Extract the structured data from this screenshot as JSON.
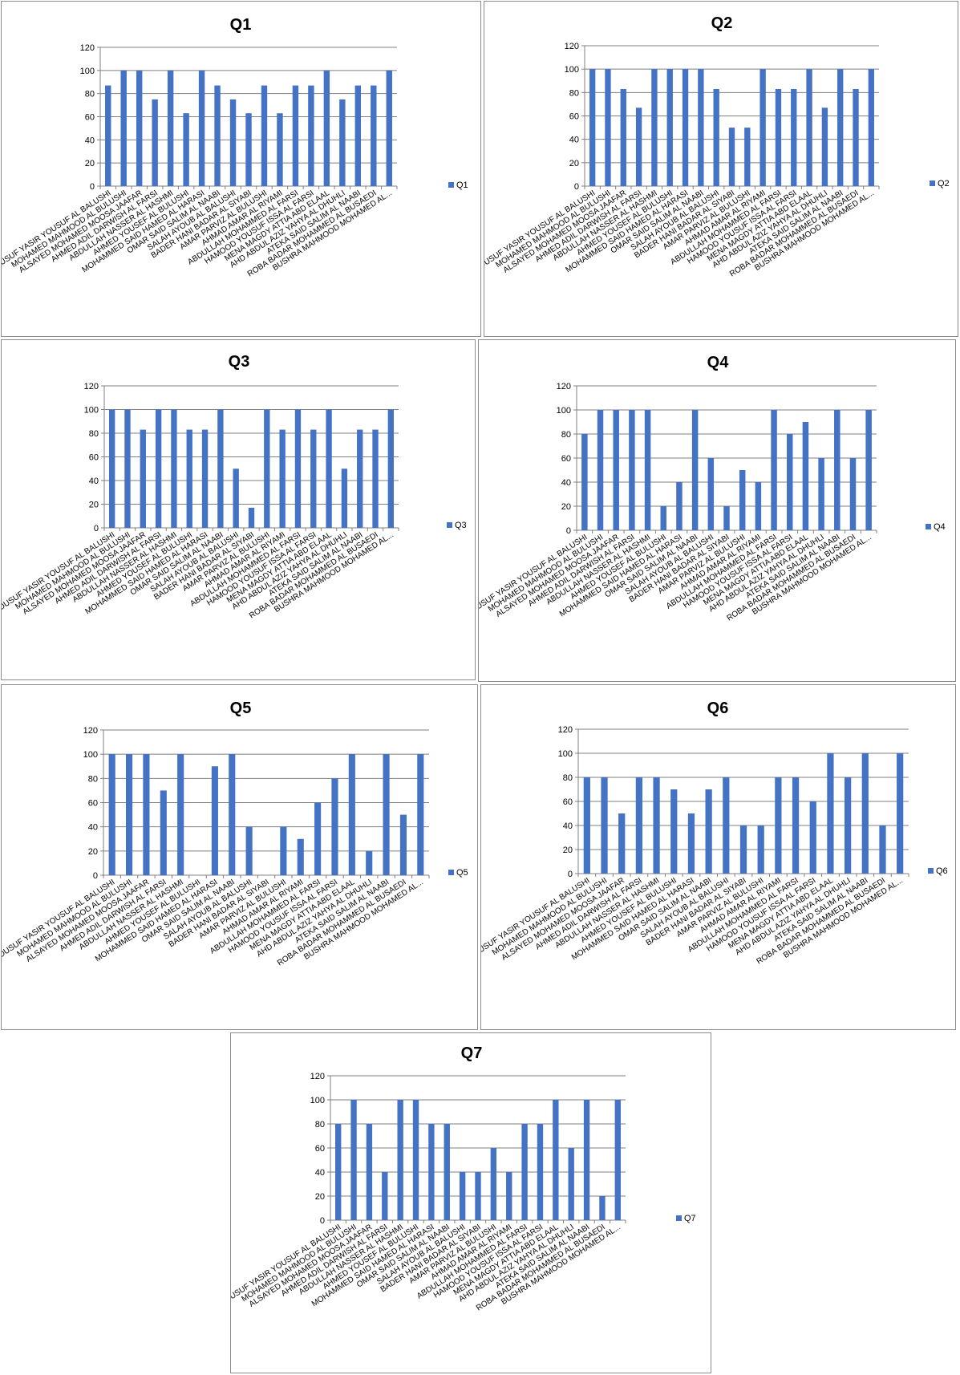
{
  "style": {
    "bar_color": "#4472C4",
    "grid_color": "#7f7f7f",
    "panel_border": "#8c8c8c"
  },
  "chart_data": [
    {
      "type": "bar",
      "title": "Q1",
      "categories": [
        "YOUSUF YASIR YOUSUF AL BALUSHI",
        "MOHAMED MAHMOOD AL BULUSHI",
        "ALSAYED MOHAMED MOOSA JAAFAR",
        "AHMED ADIL DARWISH AL FARSI",
        "ABDULLAH NASSER AL HASHMI",
        "AHMED YOUSEF AL BULUSHI",
        "MOHAMMED SAID HAMED AL HARASI",
        "OMAR SAID SALIM AL NAABI",
        "SALAH AYOUB AL BALUSHI",
        "BADER HANI BADAR AL SIYABI",
        "AMAR PARVIZ AL BULUSHI",
        "AHMAD AMAR AL RIYAMI",
        "ABDULLAH MOHAMMED AL FARSI",
        "HAMOOD YOUSUF ISSA AL FARSI",
        "MENA MAGDY ATTIA ABD ELAAL",
        "AHD ABDUL AZIZ YAHYA AL DHUHLI",
        "ATEKA SAID SALIM AL NAABI",
        "ROBA BADAR MOHAMMED AL BUSAEDI",
        "BUSHRA MAHMOOD MOHAMED AL..."
      ],
      "series": [
        {
          "name": "Q1",
          "values": [
            87,
            100,
            100,
            75,
            100,
            63,
            100,
            87,
            75,
            63,
            87,
            63,
            87,
            87,
            100,
            75,
            87,
            87,
            100
          ]
        }
      ],
      "ylim": [
        0,
        120
      ],
      "yticks": [
        "0",
        "20",
        "40",
        "60",
        "80",
        "100",
        "120"
      ],
      "grid": true,
      "legend": "right"
    },
    {
      "type": "bar",
      "title": "Q2",
      "categories": [
        "YOUSUF YASIR YOUSUF AL BALUSHI",
        "MOHAMED MAHMOOD AL BULUSHI",
        "ALSAYED MOHAMED MOOSA JAAFAR",
        "AHMED ADIL DARWISH AL FARSI",
        "ABDULLAH NASSER AL HASHMI",
        "AHMED YOUSEF AL BULUSHI",
        "MOHAMMED SAID HAMED AL HARASI",
        "OMAR SAID SALIM AL NAABI",
        "SALAH AYOUB AL BALUSHI",
        "BADER HANI BADAR AL SIYABI",
        "AMAR PARVIZ AL BULUSHI",
        "AHMAD AMAR AL RIYAMI",
        "ABDULLAH MOHAMMED AL FARSI",
        "HAMOOD YOUSUF ISSA AL FARSI",
        "MENA MAGDY ATTIA ABD ELAAL",
        "AHD ABDUL AZIZ YAHYA AL DHUHLI",
        "ATEKA SAID SALIM AL NAABI",
        "ROBA BADAR MOHAMMED AL BUSAEDI",
        "BUSHRA MAHMOOD MOHAMED AL..."
      ],
      "series": [
        {
          "name": "Q2",
          "values": [
            100,
            100,
            83,
            67,
            100,
            100,
            100,
            100,
            83,
            50,
            50,
            100,
            83,
            83,
            100,
            67,
            100,
            83,
            100
          ]
        }
      ],
      "ylim": [
        0,
        120
      ],
      "yticks": [
        "0",
        "20",
        "40",
        "60",
        "80",
        "100",
        "120"
      ],
      "grid": true,
      "legend": "right"
    },
    {
      "type": "bar",
      "title": "Q3",
      "categories": [
        "YOUSUF YASIR YOUSUF AL BALUSHI",
        "MOHAMED MAHMOOD AL BULUSHI",
        "ALSAYED MOHAMED MOOSA JAAFAR",
        "AHMED ADIL DARWISH AL FARSI",
        "ABDULLAH NASSER AL HASHMI",
        "AHMED YOUSEF AL BULUSHI",
        "MOHAMMED SAID HAMED AL HARASI",
        "OMAR SAID SALIM AL NAABI",
        "SALAH AYOUB AL BALUSHI",
        "BADER HANI BADAR AL SIYABI",
        "AMAR PARVIZ AL BULUSHI",
        "AHMAD AMAR AL RIYAMI",
        "ABDULLAH MOHAMMED AL FARSI",
        "HAMOOD YOUSUF ISSA AL FARSI",
        "MENA MAGDY ATTIA ABD ELAAL",
        "AHD ABDUL AZIZ YAHYA AL DHUHLI",
        "ATEKA SAID SALIM AL NAABI",
        "ROBA BADAR MOHAMMED AL BUSAEDI",
        "BUSHRA MAHMOOD MOHAMED AL..."
      ],
      "series": [
        {
          "name": "Q3",
          "values": [
            100,
            100,
            83,
            100,
            100,
            83,
            83,
            100,
            50,
            17,
            100,
            83,
            100,
            83,
            100,
            50,
            83,
            83,
            100
          ]
        }
      ],
      "ylim": [
        0,
        120
      ],
      "yticks": [
        "0",
        "20",
        "40",
        "60",
        "80",
        "100",
        "120"
      ],
      "grid": true,
      "legend": "right"
    },
    {
      "type": "bar",
      "title": "Q4",
      "categories": [
        "YOUSUF YASIR YOUSUF AL BALUSHI",
        "MOHAMED MAHMOOD AL BULUSHI",
        "ALSAYED MOHAMED MOOSA JAAFAR",
        "AHMED ADIL DARWISH AL FARSI",
        "ABDULLAH NASSER AL HASHMI",
        "AHMED YOUSEF AL BULUSHI",
        "MOHAMMED SAID HAMED AL HARASI",
        "OMAR SAID SALIM AL NAABI",
        "SALAH AYOUB AL BALUSHI",
        "BADER HANI BADAR AL SIYABI",
        "AMAR PARVIZ AL BULUSHI",
        "AHMAD AMAR AL RIYAMI",
        "ABDULLAH MOHAMMED AL FARSI",
        "HAMOOD YOUSUF ISSA AL FARSI",
        "MENA MAGDY ATTIA ABD ELAAL",
        "AHD ABDUL AZIZ YAHYA AL DHUHLI",
        "ATEKA SAID SALIM AL NAABI",
        "ROBA BADAR MOHAMMED AL BUSAEDI",
        "BUSHRA MAHMOOD MOHAMED AL..."
      ],
      "series": [
        {
          "name": "Q4",
          "values": [
            80,
            100,
            100,
            100,
            100,
            20,
            40,
            100,
            60,
            20,
            50,
            40,
            100,
            80,
            90,
            60,
            100,
            60,
            100
          ]
        }
      ],
      "ylim": [
        0,
        120
      ],
      "yticks": [
        "0",
        "20",
        "40",
        "60",
        "80",
        "100",
        "120"
      ],
      "grid": true,
      "legend": "right"
    },
    {
      "type": "bar",
      "title": "Q5",
      "categories": [
        "YOUSUF YASIR YOUSUF AL BALUSHI",
        "MOHAMED MAHMOOD AL BULUSHI",
        "ALSAYED MOHAMED MOOSA JAAFAR",
        "AHMED ADIL DARWISH AL FARSI",
        "ABDULLAH NASSER AL HASHMI",
        "AHMED YOUSEF AL BULUSHI",
        "MOHAMMED SAID HAMED AL HARASI",
        "OMAR SAID SALIM AL NAABI",
        "SALAH AYOUB AL BALUSHI",
        "BADER HANI BADAR AL SIYABI",
        "AMAR PARVIZ AL BULUSHI",
        "AHMAD AMAR AL RIYAMI",
        "ABDULLAH MOHAMMED AL FARSI",
        "HAMOOD YOUSUF ISSA AL FARSI",
        "MENA MAGDY ATTIA ABD ELAAL",
        "AHD ABDUL AZIZ YAHYA AL DHUHLI",
        "ATEKA SAID SALIM AL NAABI",
        "ROBA BADAR MOHAMMED AL BUSAEDI",
        "BUSHRA MAHMOOD MOHAMED AL..."
      ],
      "series": [
        {
          "name": "Q5",
          "values": [
            100,
            100,
            100,
            70,
            100,
            0,
            90,
            100,
            40,
            0,
            40,
            30,
            60,
            80,
            100,
            20,
            100,
            50,
            100
          ]
        }
      ],
      "ylim": [
        0,
        120
      ],
      "yticks": [
        "0",
        "20",
        "40",
        "60",
        "80",
        "100",
        "120"
      ],
      "grid": true,
      "legend": "right"
    },
    {
      "type": "bar",
      "title": "Q6",
      "categories": [
        "YOUSUF YASIR YOUSUF AL BALUSHI",
        "MOHAMED MAHMOOD AL BULUSHI",
        "ALSAYED MOHAMED MOOSA JAAFAR",
        "AHMED ADIL DARWISH AL FARSI",
        "ABDULLAH NASSER AL HASHMI",
        "AHMED YOUSEF AL BULUSHI",
        "MOHAMMED SAID HAMED AL HARASI",
        "OMAR SAID SALIM AL NAABI",
        "SALAH AYOUB AL BALUSHI",
        "BADER HANI BADAR AL SIYABI",
        "AMAR PARVIZ AL BULUSHI",
        "AHMAD AMAR AL RIYAMI",
        "ABDULLAH MOHAMMED AL FARSI",
        "HAMOOD YOUSUF ISSA AL FARSI",
        "MENA MAGDY ATTIA ABD ELAAL",
        "AHD ABDUL AZIZ YAHYA AL DHUHLI",
        "ATEKA SAID SALIM AL NAABI",
        "ROBA BADAR MOHAMMED AL BUSAEDI",
        "BUSHRA MAHMOOD MOHAMED AL..."
      ],
      "series": [
        {
          "name": "Q6",
          "values": [
            80,
            80,
            50,
            80,
            80,
            70,
            50,
            70,
            80,
            40,
            40,
            80,
            80,
            60,
            100,
            80,
            100,
            40,
            100
          ]
        }
      ],
      "ylim": [
        0,
        120
      ],
      "yticks": [
        "0",
        "20",
        "40",
        "60",
        "80",
        "100",
        "120"
      ],
      "grid": true,
      "legend": "right"
    },
    {
      "type": "bar",
      "title": "Q7",
      "categories": [
        "YOUSUF YASIR YOUSUF AL BALUSHI",
        "MOHAMED MAHMOOD AL BULUSHI",
        "ALSAYED MOHAMED MOOSA JAAFAR",
        "AHMED ADIL DARWISH AL FARSI",
        "ABDULLAH NASSER AL HASHMI",
        "AHMED YOUSEF AL BULUSHI",
        "MOHAMMED SAID HAMED AL HARASI",
        "OMAR SAID SALIM AL NAABI",
        "SALAH AYOUB AL BALUSHI",
        "BADER HANI BADAR AL SIYABI",
        "AMAR PARVIZ AL BULUSHI",
        "AHMAD AMAR AL RIYAMI",
        "ABDULLAH MOHAMMED AL FARSI",
        "HAMOOD YOUSUF ISSA AL FARSI",
        "MENA MAGDY ATTIA ABD ELAAL",
        "AHD ABDUL AZIZ YAHYA AL DHUHLI",
        "ATEKA SAID SALIM AL NAABI",
        "ROBA BADAR MOHAMMED AL BUSAEDI",
        "BUSHRA MAHMOOD MOHAMED AL..."
      ],
      "series": [
        {
          "name": "Q7",
          "values": [
            80,
            100,
            80,
            40,
            100,
            100,
            80,
            80,
            40,
            40,
            60,
            40,
            80,
            80,
            100,
            60,
            100,
            20,
            100
          ]
        }
      ],
      "ylim": [
        0,
        120
      ],
      "yticks": [
        "0",
        "20",
        "40",
        "60",
        "80",
        "100",
        "120"
      ],
      "grid": true,
      "legend": "right"
    }
  ]
}
